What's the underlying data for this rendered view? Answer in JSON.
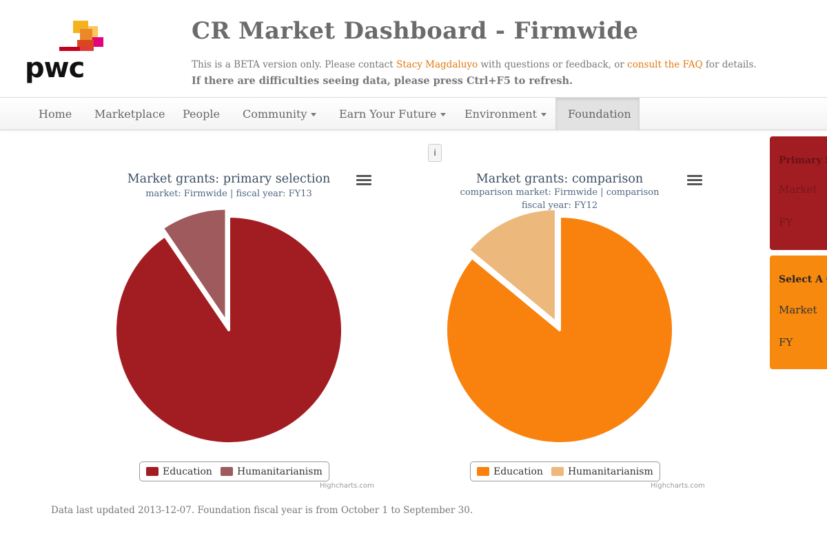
{
  "brand": {
    "logo_text": "pwc",
    "block_colors": [
      "#f6b21c",
      "#e9892a",
      "#d9461f",
      "#c2001f",
      "#e5007d",
      "#f4c6d6"
    ]
  },
  "header": {
    "title": "CR Market Dashboard - Firmwide",
    "notice_prefix": "This is a BETA version only. Please contact",
    "contact_link": "Stacy Magdaluyo",
    "notice_middle": "with questions or feedback, or",
    "faq_link": "consult the FAQ",
    "notice_suffix": "for details.",
    "refresh_note": "If there are difficulties seeing data, please press Ctrl+F5 to refresh."
  },
  "nav": {
    "items": [
      {
        "label": "Home",
        "dropdown": false
      },
      {
        "label": "Marketplace",
        "dropdown": false
      },
      {
        "label": "People",
        "dropdown": false
      },
      {
        "label": "Community",
        "dropdown": true
      },
      {
        "label": "Earn Your Future",
        "dropdown": true
      },
      {
        "label": "Environment",
        "dropdown": true
      },
      {
        "label": "Foundation",
        "dropdown": false,
        "active": true
      }
    ]
  },
  "info_button": "i",
  "chart_data": [
    {
      "type": "pie",
      "title": "Market grants: primary selection",
      "subtitle_lines": [
        "market: Firmwide | fiscal year: FY13"
      ],
      "slices": [
        {
          "name": "Education",
          "value": 90.5,
          "color": "#a21d22"
        },
        {
          "name": "Humanitarianism",
          "value": 9.5,
          "color": "#9e5a5c",
          "sliced": true
        }
      ],
      "credits": "Highcharts.com"
    },
    {
      "type": "pie",
      "title": "Market grants: comparison",
      "subtitle_lines": [
        "comparison market: Firmwide | comparison",
        "fiscal year: FY12"
      ],
      "slices": [
        {
          "name": "Education",
          "value": 86,
          "color": "#f9820f"
        },
        {
          "name": "Humanitarianism",
          "value": 14,
          "color": "#ecb87b",
          "sliced": true
        }
      ],
      "credits": "Highcharts.com"
    }
  ],
  "panels": {
    "primary": {
      "title": "Primary S",
      "market": "Market",
      "fy": "FY",
      "color": "#a21d22"
    },
    "comparison": {
      "title": "Select A C",
      "market": "Market",
      "fy": "FY",
      "color": "#f7890f"
    }
  },
  "footer": "Data last updated 2013-12-07. Foundation fiscal year is from October 1 to September 30."
}
